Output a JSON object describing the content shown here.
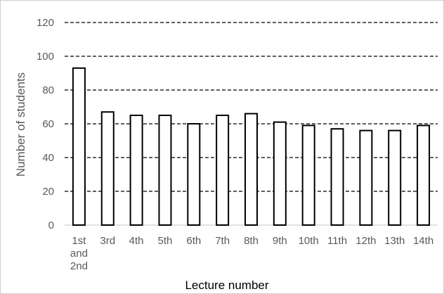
{
  "chart_data": {
    "type": "bar",
    "categories": [
      [
        "1st",
        "and",
        "2nd"
      ],
      [
        "3rd"
      ],
      [
        "4th"
      ],
      [
        "5th"
      ],
      [
        "6th"
      ],
      [
        "7th"
      ],
      [
        "8th"
      ],
      [
        "9th"
      ],
      [
        "10th"
      ],
      [
        "11th"
      ],
      [
        "12th"
      ],
      [
        "13th"
      ],
      [
        "14th"
      ]
    ],
    "values": [
      93,
      67,
      65,
      65,
      60,
      65,
      66,
      61,
      59,
      57,
      56,
      56,
      59
    ],
    "title": "",
    "xlabel": "Lecture number",
    "ylabel": "Number of students",
    "ylim": [
      0,
      120
    ],
    "yticks": [
      0,
      20,
      40,
      60,
      80,
      100,
      120
    ],
    "grid": true,
    "grid_style": "dashed",
    "legend": "none",
    "colors": {
      "bar_fill": "#ffffff",
      "bar_stroke": "#000000",
      "grid": "#000000",
      "tick_text": "#595959"
    }
  }
}
